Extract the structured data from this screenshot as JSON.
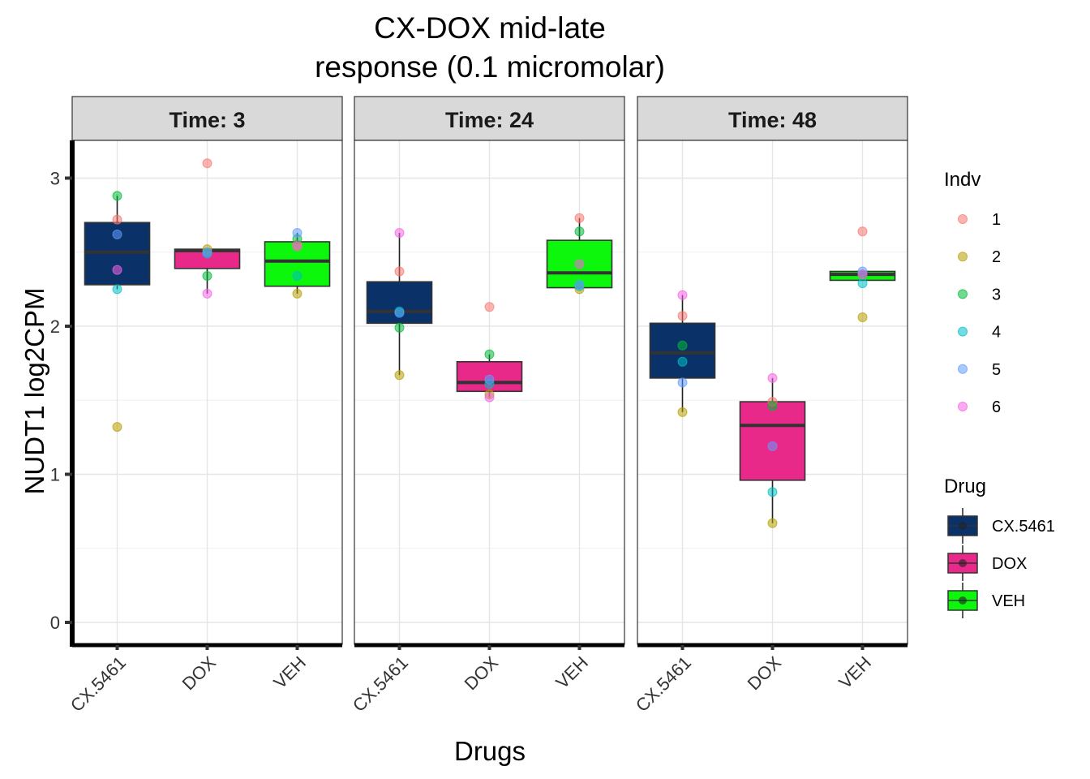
{
  "chart_data": {
    "type": "box",
    "title_lines": [
      "CX-DOX mid-late",
      "response (0.1 micromolar)"
    ],
    "xlabel": "Drugs",
    "ylabel": "NUDT1  log2CPM",
    "ylim": [
      -0.15,
      3.25
    ],
    "yticks": [
      0,
      1,
      2,
      3
    ],
    "ytick_labels": [
      "0",
      "1",
      "2",
      "3"
    ],
    "categories": [
      "CX.5461",
      "DOX",
      "VEH"
    ],
    "facets": [
      {
        "label": "Time: 3",
        "boxes": [
          {
            "drug": "CX.5461",
            "q1": 2.28,
            "median": 2.5,
            "q3": 2.7,
            "whisker_low": 2.25,
            "whisker_high": 2.88,
            "points": [
              {
                "indv": "1",
                "y": 2.72
              },
              {
                "indv": "2",
                "y": 1.32
              },
              {
                "indv": "3",
                "y": 2.88
              },
              {
                "indv": "4",
                "y": 2.25
              },
              {
                "indv": "5",
                "y": 2.62
              },
              {
                "indv": "6",
                "y": 2.38
              }
            ]
          },
          {
            "drug": "DOX",
            "q1": 2.39,
            "median": 2.51,
            "q3": 2.52,
            "whisker_low": 2.22,
            "whisker_high": 2.52,
            "points": [
              {
                "indv": "1",
                "y": 3.1
              },
              {
                "indv": "2",
                "y": 2.52
              },
              {
                "indv": "3",
                "y": 2.34
              },
              {
                "indv": "4",
                "y": 2.49
              },
              {
                "indv": "5",
                "y": 2.5
              },
              {
                "indv": "6",
                "y": 2.22
              }
            ]
          },
          {
            "drug": "VEH",
            "q1": 2.27,
            "median": 2.44,
            "q3": 2.57,
            "whisker_low": 2.22,
            "whisker_high": 2.63,
            "points": [
              {
                "indv": "1",
                "y": 2.55
              },
              {
                "indv": "2",
                "y": 2.22
              },
              {
                "indv": "3",
                "y": 2.59
              },
              {
                "indv": "4",
                "y": 2.34
              },
              {
                "indv": "5",
                "y": 2.63
              },
              {
                "indv": "6",
                "y": 2.54
              }
            ]
          }
        ]
      },
      {
        "label": "Time: 24",
        "boxes": [
          {
            "drug": "CX.5461",
            "q1": 2.02,
            "median": 2.1,
            "q3": 2.3,
            "whisker_low": 1.67,
            "whisker_high": 2.63,
            "points": [
              {
                "indv": "1",
                "y": 2.37
              },
              {
                "indv": "2",
                "y": 1.67
              },
              {
                "indv": "3",
                "y": 1.99
              },
              {
                "indv": "4",
                "y": 2.1
              },
              {
                "indv": "5",
                "y": 2.09
              },
              {
                "indv": "6",
                "y": 2.63
              }
            ]
          },
          {
            "drug": "DOX",
            "q1": 1.56,
            "median": 1.62,
            "q3": 1.76,
            "whisker_low": 1.52,
            "whisker_high": 1.81,
            "points": [
              {
                "indv": "1",
                "y": 2.13
              },
              {
                "indv": "2",
                "y": 1.54
              },
              {
                "indv": "3",
                "y": 1.81
              },
              {
                "indv": "4",
                "y": 1.61
              },
              {
                "indv": "5",
                "y": 1.64
              },
              {
                "indv": "6",
                "y": 1.52
              }
            ]
          },
          {
            "drug": "VEH",
            "q1": 2.26,
            "median": 2.36,
            "q3": 2.58,
            "whisker_low": 2.25,
            "whisker_high": 2.73,
            "points": [
              {
                "indv": "1",
                "y": 2.73
              },
              {
                "indv": "2",
                "y": 2.25
              },
              {
                "indv": "3",
                "y": 2.64
              },
              {
                "indv": "4",
                "y": 2.27
              },
              {
                "indv": "5",
                "y": 2.28
              },
              {
                "indv": "6",
                "y": 2.42
              }
            ]
          }
        ]
      },
      {
        "label": "Time: 48",
        "boxes": [
          {
            "drug": "CX.5461",
            "q1": 1.65,
            "median": 1.82,
            "q3": 2.02,
            "whisker_low": 1.42,
            "whisker_high": 2.21,
            "points": [
              {
                "indv": "1",
                "y": 2.07
              },
              {
                "indv": "2",
                "y": 1.42
              },
              {
                "indv": "3",
                "y": 1.87
              },
              {
                "indv": "4",
                "y": 1.76
              },
              {
                "indv": "5",
                "y": 1.62
              },
              {
                "indv": "6",
                "y": 2.21
              }
            ]
          },
          {
            "drug": "DOX",
            "q1": 0.96,
            "median": 1.33,
            "q3": 1.49,
            "whisker_low": 0.67,
            "whisker_high": 1.65,
            "points": [
              {
                "indv": "1",
                "y": 1.49
              },
              {
                "indv": "2",
                "y": 0.67
              },
              {
                "indv": "3",
                "y": 1.46
              },
              {
                "indv": "4",
                "y": 0.88
              },
              {
                "indv": "5",
                "y": 1.19
              },
              {
                "indv": "6",
                "y": 1.65
              }
            ]
          },
          {
            "drug": "VEH",
            "q1": 2.31,
            "median": 2.35,
            "q3": 2.37,
            "whisker_low": 2.31,
            "whisker_high": 2.37,
            "points": [
              {
                "indv": "1",
                "y": 2.64
              },
              {
                "indv": "2",
                "y": 2.06
              },
              {
                "indv": "3",
                "y": 2.35
              },
              {
                "indv": "4",
                "y": 2.29
              },
              {
                "indv": "5",
                "y": 2.37
              },
              {
                "indv": "6",
                "y": 2.35
              }
            ]
          }
        ]
      }
    ],
    "legends": [
      {
        "title": "Indv",
        "items": [
          {
            "label": "1",
            "color": "#F8766D"
          },
          {
            "label": "2",
            "color": "#B79F00"
          },
          {
            "label": "3",
            "color": "#00BA38"
          },
          {
            "label": "4",
            "color": "#00BFC4"
          },
          {
            "label": "5",
            "color": "#619CFF"
          },
          {
            "label": "6",
            "color": "#F564E3"
          }
        ]
      },
      {
        "title": "Drug",
        "items": [
          {
            "label": "CX.5461",
            "color": "#0A3269"
          },
          {
            "label": "DOX",
            "color": "#E8298A"
          },
          {
            "label": "VEH",
            "color": "#0DF70D"
          }
        ]
      }
    ],
    "grid": true,
    "legend_position": "right"
  }
}
